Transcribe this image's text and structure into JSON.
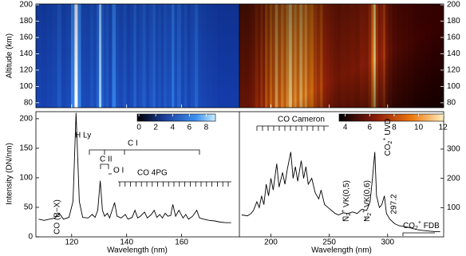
{
  "altitude_axis": {
    "label": "Altitude (km)",
    "ylim": [
      74,
      201
    ],
    "yticks": [
      80,
      100,
      120,
      140,
      160,
      180,
      200
    ]
  },
  "colorbars": [
    {
      "lim": [
        -0.2,
        9.1
      ],
      "ticks": [
        0,
        2,
        4,
        6,
        8
      ]
    },
    {
      "lim": [
        3.5,
        12.05
      ],
      "ticks": [
        4,
        6,
        8,
        10,
        12
      ]
    }
  ],
  "chart_data": [
    {
      "type": "line",
      "xlabel": "Wavelength (nm)",
      "ylabel": "Intensity (DN/nm)",
      "color": "#000000",
      "xlim": [
        107,
        181
      ],
      "xticks": [
        120,
        140,
        160
      ],
      "ylim": [
        0,
        212
      ],
      "yticks": [
        0,
        50,
        100,
        150,
        200
      ],
      "x": [
        108,
        110,
        112,
        114,
        115.5,
        117,
        119,
        120.5,
        121.6,
        122.8,
        124,
        126,
        127.5,
        128.5,
        129.5,
        130.4,
        131.2,
        132,
        133,
        133.8,
        135.6,
        136.5,
        138,
        139.5,
        140.5,
        142,
        143,
        144,
        145,
        146.5,
        147.5,
        149,
        150,
        151,
        152,
        153,
        154,
        155,
        156,
        156.8,
        157.8,
        159,
        160.5,
        161.5,
        162.5,
        164,
        165.5,
        166.5,
        168,
        170,
        172,
        174,
        176,
        178
      ],
      "values": [
        30,
        28,
        30,
        32,
        40,
        30,
        33,
        60,
        210,
        60,
        33,
        32,
        38,
        33,
        45,
        95,
        45,
        35,
        40,
        32,
        58,
        35,
        32,
        38,
        30,
        33,
        45,
        32,
        35,
        42,
        32,
        38,
        45,
        33,
        38,
        32,
        40,
        35,
        36,
        55,
        35,
        45,
        32,
        38,
        30,
        35,
        45,
        32,
        30,
        28,
        27,
        25,
        24,
        24
      ],
      "annotations": {
        "h_ly": "H Ly",
        "c_i": "C I",
        "c_ii": "C II",
        "o_i": "O I",
        "co_4pg": "CO 4PG",
        "co_bx": "CO (B−X)"
      }
    },
    {
      "type": "line",
      "xlabel": "Wavelength (nm)",
      "color": "#000000",
      "xlim": [
        173,
        348
      ],
      "xticks": [
        200,
        250,
        300
      ],
      "y2lim": [
        0,
        428
      ],
      "y2ticks": [
        100,
        200,
        300
      ],
      "axis": "y2",
      "x": [
        175,
        180,
        183,
        185,
        188,
        190,
        192,
        194,
        196,
        198,
        200,
        202,
        205,
        207,
        210,
        212,
        214,
        217,
        219,
        221,
        223,
        226,
        228,
        230,
        232,
        235,
        238,
        241,
        243,
        246,
        249,
        252,
        255,
        258,
        262,
        266,
        270,
        274,
        278,
        282,
        285,
        287,
        289,
        290.5,
        293,
        295,
        297.2,
        299,
        302,
        306,
        310,
        315,
        320,
        325,
        330,
        335,
        340,
        345
      ],
      "values": [
        75,
        72,
        80,
        90,
        120,
        100,
        140,
        110,
        180,
        140,
        200,
        160,
        250,
        170,
        220,
        180,
        230,
        290,
        200,
        240,
        190,
        260,
        200,
        240,
        180,
        200,
        150,
        130,
        160,
        110,
        100,
        90,
        80,
        75,
        82,
        80,
        85,
        80,
        95,
        90,
        120,
        200,
        290,
        140,
        100,
        110,
        140,
        80,
        60,
        45,
        38,
        35,
        30,
        25,
        22,
        20,
        18,
        18
      ],
      "annotations": {
        "co_cameron": "CO Cameron",
        "n2_base": "N",
        "n2_sub": "2",
        "n2_sup": "+",
        "vk05": " VK(0,5)",
        "vk06": " VK(0,6)",
        "co2_base": "CO",
        "co2_sub": "2",
        "co2_sup": "+",
        "uvd": " UVD",
        "l2972": "297.2",
        "fdb": " FDB"
      }
    }
  ]
}
